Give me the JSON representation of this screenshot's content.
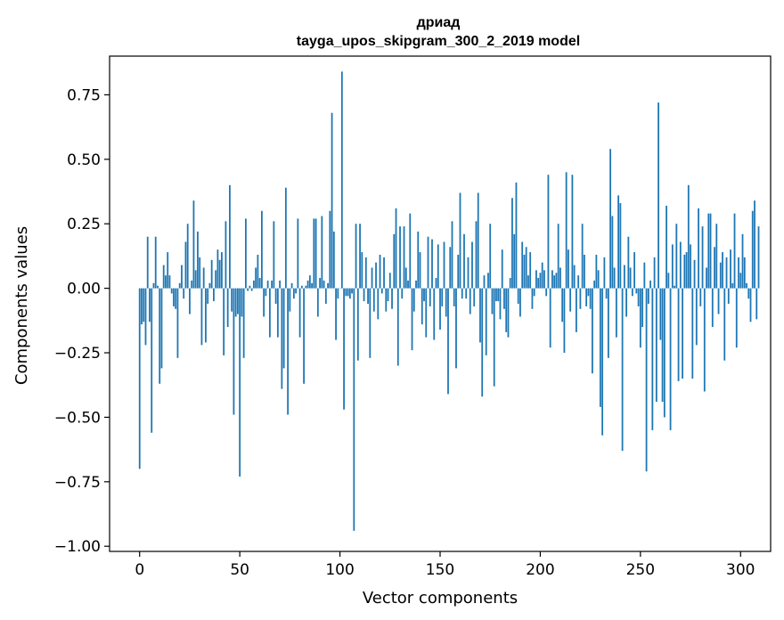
{
  "chart_data": {
    "type": "bar",
    "title": [
      "дриад",
      "tayga_upos_skipgram_300_2_2019 model"
    ],
    "xlabel": "Vector components",
    "ylabel": "Components values",
    "xlim": [
      -15,
      315
    ],
    "ylim": [
      -1.02,
      0.9
    ],
    "xticks": [
      0,
      50,
      100,
      150,
      200,
      250,
      300
    ],
    "yticks": [
      -1.0,
      -0.75,
      -0.5,
      -0.25,
      0.0,
      0.25,
      0.5,
      0.75
    ],
    "ytick_labels": [
      "−1.00",
      "−0.75",
      "−0.50",
      "−0.25",
      "0.00",
      "0.25",
      "0.50",
      "0.75"
    ],
    "bar_color": "#1f77b4",
    "grid": false,
    "values": [
      -0.7,
      -0.14,
      -0.13,
      -0.22,
      0.2,
      -0.13,
      -0.56,
      0.02,
      0.2,
      0.01,
      -0.37,
      -0.31,
      0.09,
      0.05,
      0.14,
      0.05,
      -0.02,
      -0.07,
      -0.08,
      -0.27,
      0.02,
      0.09,
      -0.04,
      0.18,
      0.25,
      -0.1,
      0.03,
      0.34,
      0.07,
      0.22,
      0.12,
      -0.22,
      0.08,
      -0.21,
      -0.06,
      0.02,
      0.11,
      -0.05,
      0.07,
      0.15,
      0.11,
      0.14,
      -0.26,
      0.26,
      -0.15,
      0.4,
      -0.09,
      -0.49,
      -0.11,
      -0.1,
      -0.73,
      -0.11,
      -0.27,
      0.27,
      -0.01,
      0.01,
      -0.01,
      0.03,
      0.08,
      0.13,
      0.04,
      0.3,
      -0.11,
      -0.03,
      0.03,
      -0.19,
      0.03,
      0.26,
      -0.06,
      -0.19,
      0.03,
      -0.39,
      -0.31,
      0.39,
      -0.49,
      -0.09,
      0.02,
      -0.04,
      -0.02,
      0.27,
      -0.19,
      0.01,
      -0.37,
      0.01,
      0.03,
      0.05,
      0.02,
      0.27,
      0.27,
      -0.11,
      0.04,
      0.28,
      0.03,
      -0.06,
      0.02,
      0.3,
      0.68,
      0.22,
      -0.2,
      -0.04,
      0.0,
      0.84,
      -0.47,
      -0.03,
      -0.03,
      -0.04,
      -0.02,
      -0.94,
      0.25,
      -0.28,
      0.25,
      0.14,
      -0.05,
      0.12,
      -0.06,
      -0.27,
      0.08,
      -0.09,
      0.1,
      -0.12,
      0.13,
      -0.02,
      0.12,
      -0.09,
      -0.05,
      0.06,
      -0.08,
      0.21,
      0.31,
      -0.3,
      0.24,
      -0.04,
      0.24,
      0.08,
      0.03,
      0.29,
      -0.24,
      -0.09,
      0.03,
      0.22,
      0.14,
      -0.14,
      -0.05,
      -0.19,
      0.2,
      -0.07,
      0.19,
      -0.2,
      0.04,
      0.17,
      -0.16,
      -0.07,
      0.18,
      -0.11,
      -0.41,
      0.16,
      0.26,
      -0.07,
      -0.31,
      0.13,
      0.37,
      -0.04,
      0.21,
      -0.04,
      0.12,
      -0.1,
      0.18,
      -0.07,
      0.26,
      0.37,
      -0.21,
      -0.42,
      0.05,
      -0.26,
      0.06,
      0.25,
      -0.1,
      -0.38,
      -0.05,
      -0.05,
      -0.12,
      0.15,
      -0.08,
      -0.17,
      -0.19,
      0.04,
      0.35,
      0.21,
      0.41,
      -0.06,
      -0.11,
      0.18,
      0.13,
      0.16,
      0.05,
      0.14,
      -0.08,
      -0.03,
      0.07,
      0.04,
      0.06,
      0.1,
      0.07,
      -0.03,
      0.44,
      -0.23,
      0.07,
      0.05,
      0.06,
      0.25,
      0.08,
      -0.13,
      -0.25,
      0.45,
      0.15,
      -0.09,
      0.44,
      0.09,
      -0.17,
      0.05,
      -0.08,
      0.25,
      0.13,
      -0.07,
      -0.03,
      -0.08,
      -0.33,
      0.03,
      0.13,
      0.07,
      -0.46,
      -0.57,
      0.12,
      -0.04,
      -0.27,
      0.54,
      0.28,
      0.08,
      -0.19,
      0.36,
      0.33,
      -0.63,
      0.09,
      -0.11,
      0.2,
      0.08,
      -0.03,
      0.14,
      -0.02,
      -0.07,
      -0.23,
      -0.15,
      0.1,
      -0.71,
      -0.06,
      0.03,
      -0.55,
      0.12,
      -0.44,
      0.72,
      -0.2,
      -0.44,
      -0.5,
      0.32,
      0.06,
      -0.55,
      0.17,
      0.01,
      0.25,
      -0.36,
      0.18,
      -0.35,
      0.13,
      0.14,
      0.4,
      0.17,
      -0.35,
      0.11,
      -0.22,
      0.31,
      -0.07,
      0.24,
      -0.4,
      0.08,
      0.29,
      0.29,
      -0.15,
      0.16,
      0.25,
      -0.1,
      0.1,
      0.14,
      -0.28,
      0.12,
      -0.06,
      0.15,
      0.02,
      0.29,
      -0.23,
      0.12,
      0.06,
      0.21,
      0.12,
      0.02,
      -0.04,
      -0.13,
      0.3,
      0.34,
      -0.12,
      0.24
    ]
  }
}
